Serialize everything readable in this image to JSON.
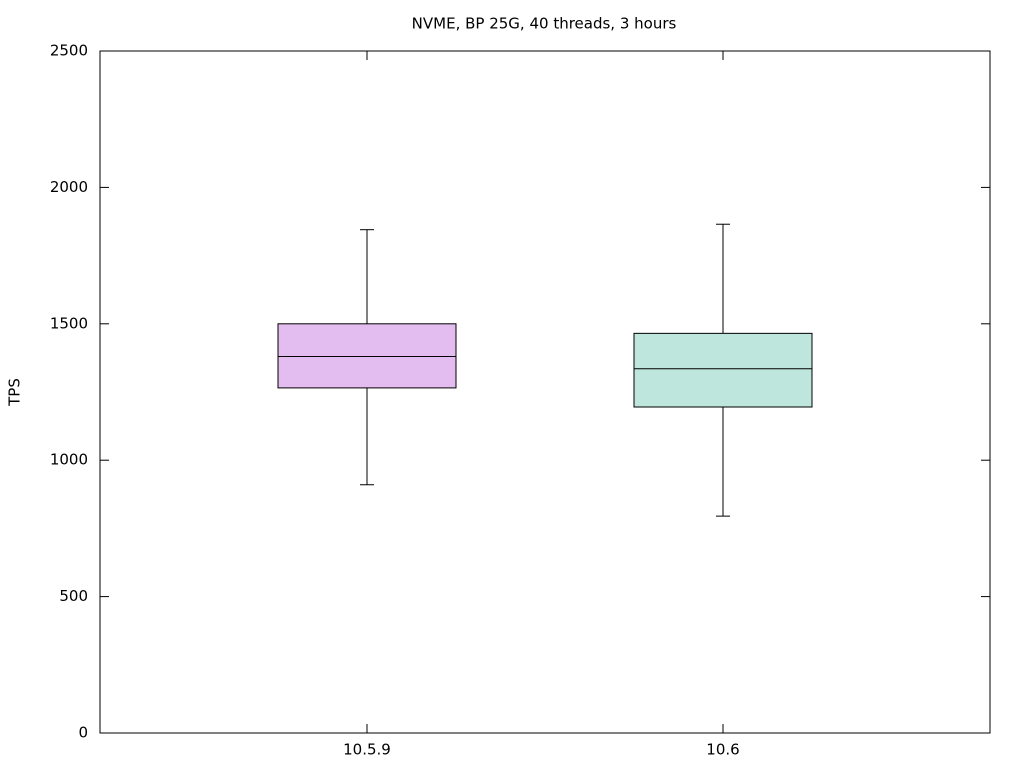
{
  "chart_data": {
    "type": "box",
    "title": "NVME, BP 25G, 40 threads, 3 hours",
    "y_label": "TPS",
    "categories": [
      "10.5.9",
      "10.6"
    ],
    "boxes": [
      {
        "min": 910,
        "q1": 1265,
        "median": 1380,
        "q3": 1500,
        "max": 1845,
        "color": "#e4bdf0"
      },
      {
        "min": 795,
        "q1": 1195,
        "median": 1335,
        "q3": 1465,
        "max": 1865,
        "color": "#bfe6dc"
      }
    ],
    "ylim": [
      0,
      2500
    ],
    "yticks": [
      0,
      500,
      1000,
      1500,
      2000,
      2500
    ]
  }
}
